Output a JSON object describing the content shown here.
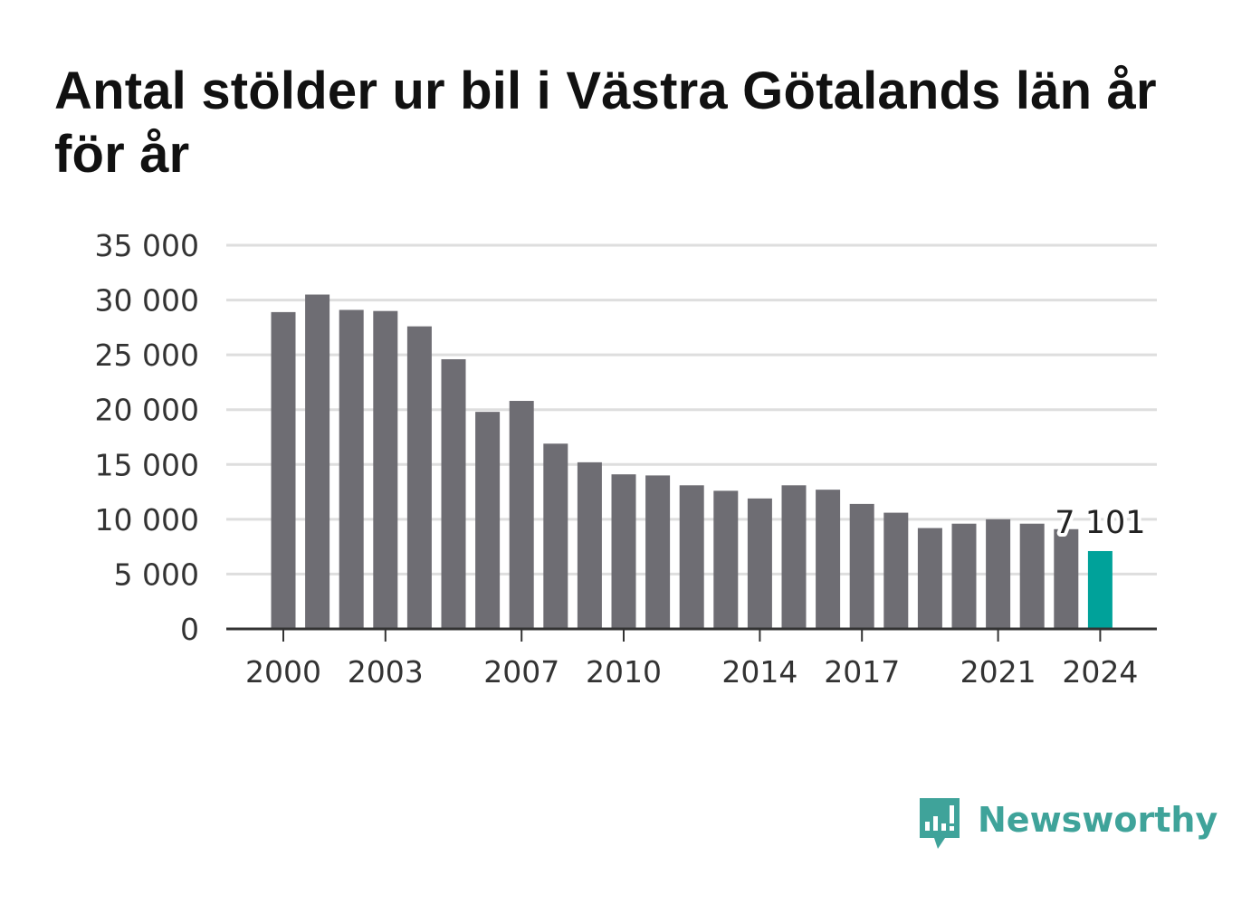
{
  "title": "Antal stölder ur bil i Västra Götalands län år för år",
  "brand": {
    "name": "Newsworthy",
    "color": "#3fa39a",
    "icon": "bar-chart-bubble-icon"
  },
  "colors": {
    "bar": "#6e6d73",
    "highlight": "#00a29a",
    "grid": "#dedede",
    "axis": "#333333"
  },
  "chart_data": {
    "type": "bar",
    "title": "Antal stölder ur bil i Västra Götalands län år för år",
    "xlabel": "",
    "ylabel": "",
    "ylim": [
      0,
      35000
    ],
    "yticks": [
      0,
      5000,
      10000,
      15000,
      20000,
      25000,
      30000,
      35000
    ],
    "ytick_labels": [
      "0",
      "5 000",
      "10 000",
      "15 000",
      "20 000",
      "25 000",
      "30 000",
      "35 000"
    ],
    "categories": [
      "2000",
      "2001",
      "2002",
      "2003",
      "2004",
      "2005",
      "2006",
      "2007",
      "2008",
      "2009",
      "2010",
      "2011",
      "2012",
      "2013",
      "2014",
      "2015",
      "2016",
      "2017",
      "2018",
      "2019",
      "2020",
      "2021",
      "2022",
      "2023",
      "2024"
    ],
    "values": [
      28900,
      30500,
      29100,
      29000,
      27600,
      24600,
      19800,
      20800,
      16900,
      15200,
      14100,
      14000,
      13100,
      12600,
      11900,
      13100,
      12700,
      11400,
      10600,
      9200,
      9600,
      10000,
      9600,
      9100,
      7101
    ],
    "xtick_labels": [
      "2000",
      "2003",
      "2007",
      "2010",
      "2014",
      "2017",
      "2021",
      "2024"
    ],
    "highlight": {
      "category": "2024",
      "label": "7 101"
    },
    "grid": true
  }
}
